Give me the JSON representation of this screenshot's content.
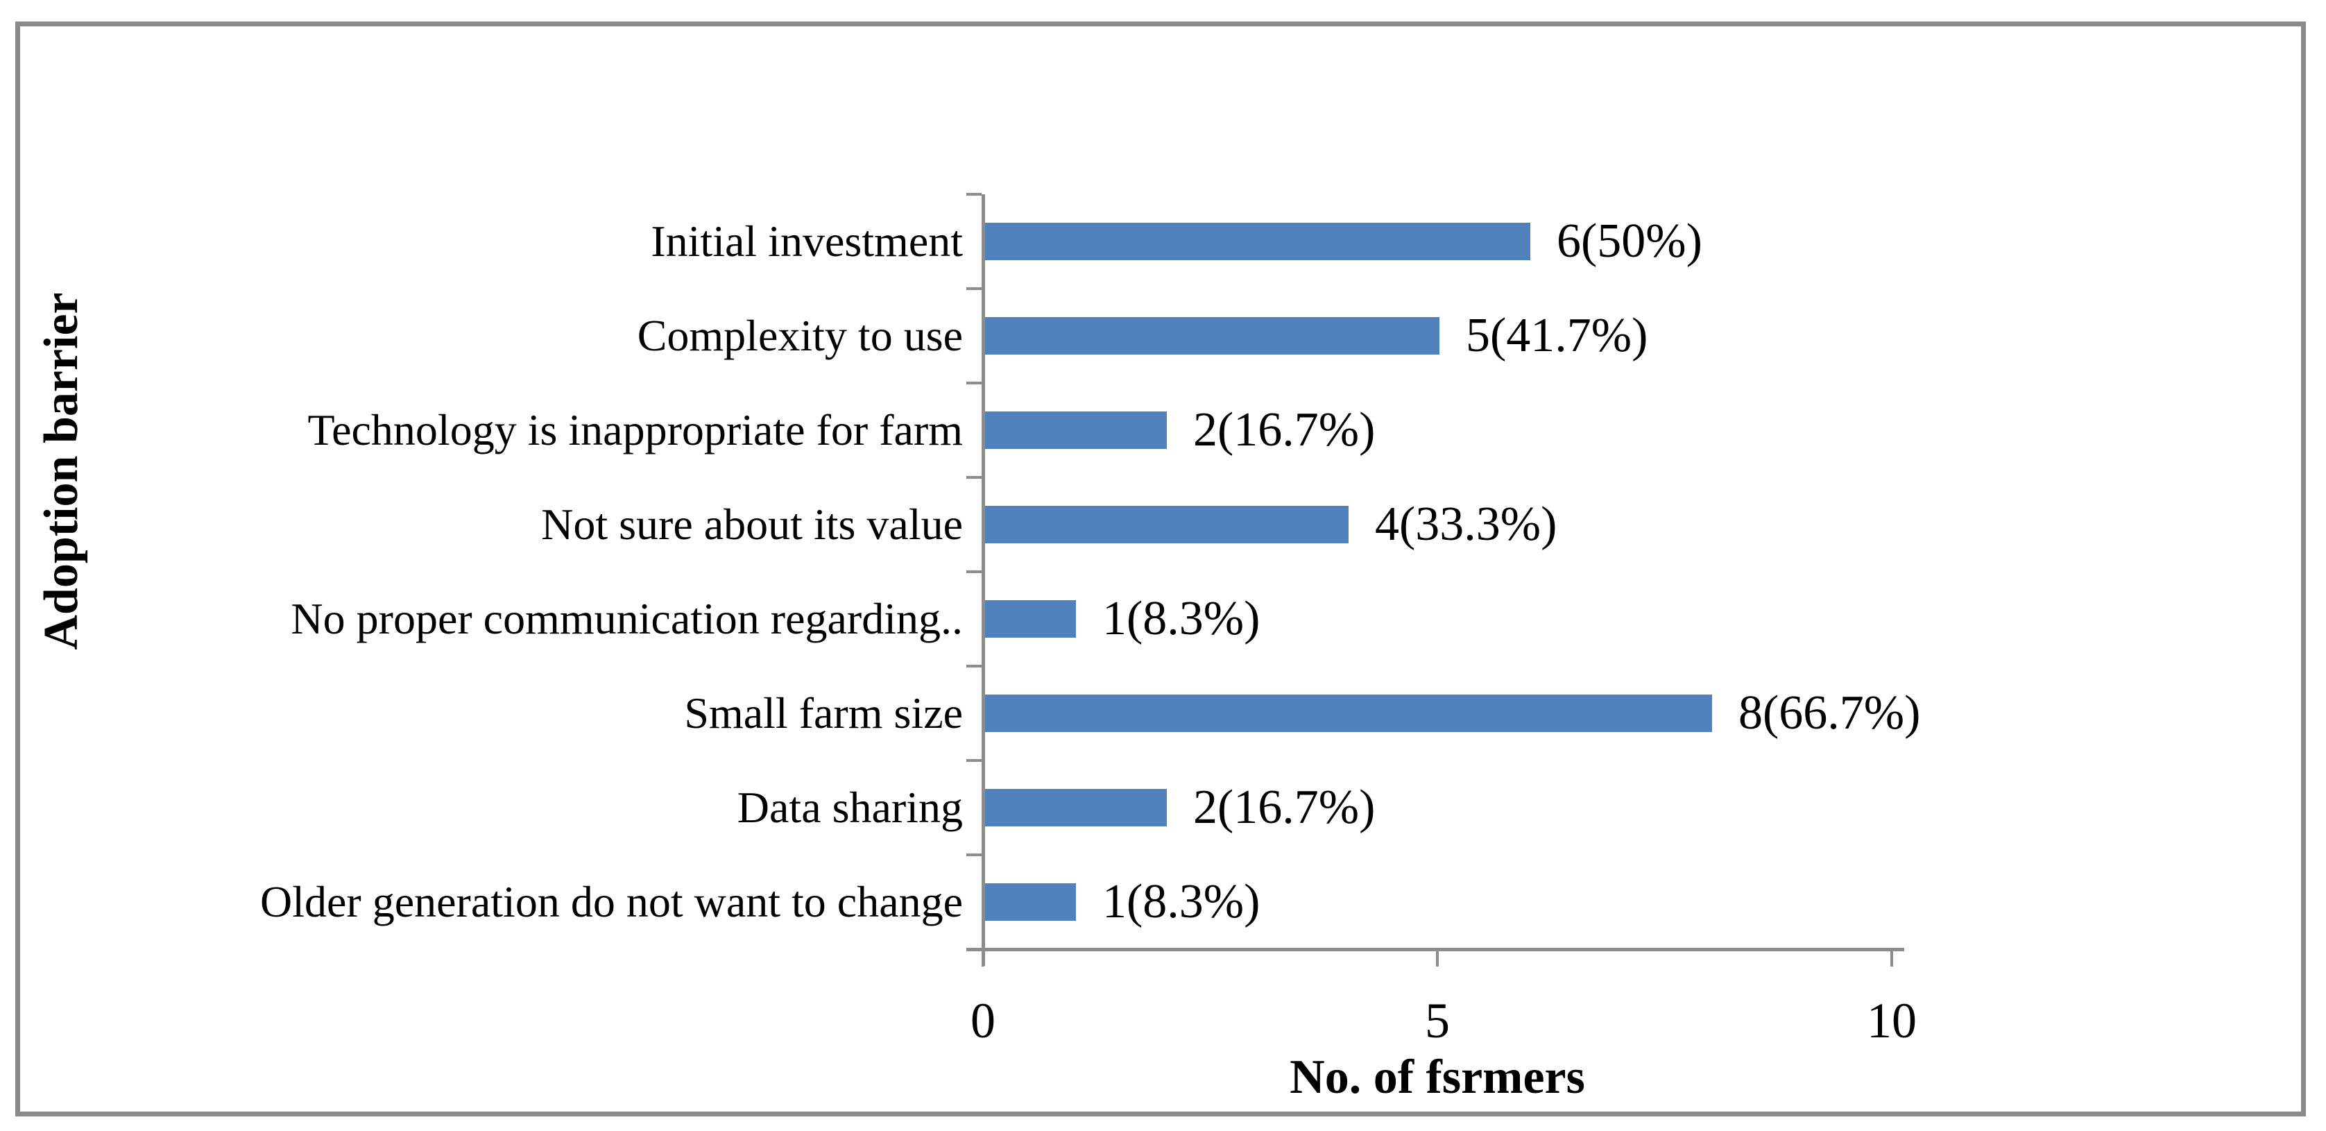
{
  "figure": {
    "title": "",
    "xlabel": "No. of fsrmers",
    "ylabel": "Adoption barrier"
  },
  "chart_data": {
    "type": "bar",
    "orientation": "horizontal",
    "title": "",
    "xlabel": "No. of fsrmers",
    "ylabel": "Adoption barrier",
    "categories": [
      "Initial investment",
      "Complexity to use",
      "Technology is inappropriate for farm",
      "Not sure about its value",
      "No proper communication regarding..",
      "Small farm size",
      "Data sharing",
      "Older generation do not want to change"
    ],
    "values": [
      6,
      5,
      2,
      4,
      1,
      8,
      2,
      1
    ],
    "data_labels": [
      "6(50%)",
      "5(41.7%)",
      "2(16.7%)",
      "4(33.3%)",
      "1(8.3%)",
      "8(66.7%)",
      "2(16.7%)",
      "1(8.3%)"
    ],
    "x_ticks": [
      0,
      5,
      10
    ],
    "x_tick_labels": [
      "0",
      "5",
      "10"
    ],
    "xlim": [
      0,
      10
    ],
    "grid": false,
    "legend": null,
    "bar_color": "#4F81BD",
    "axis_color": "#8C8C8C",
    "frame_color": "#8A8A8A",
    "text_color": "#000000"
  }
}
